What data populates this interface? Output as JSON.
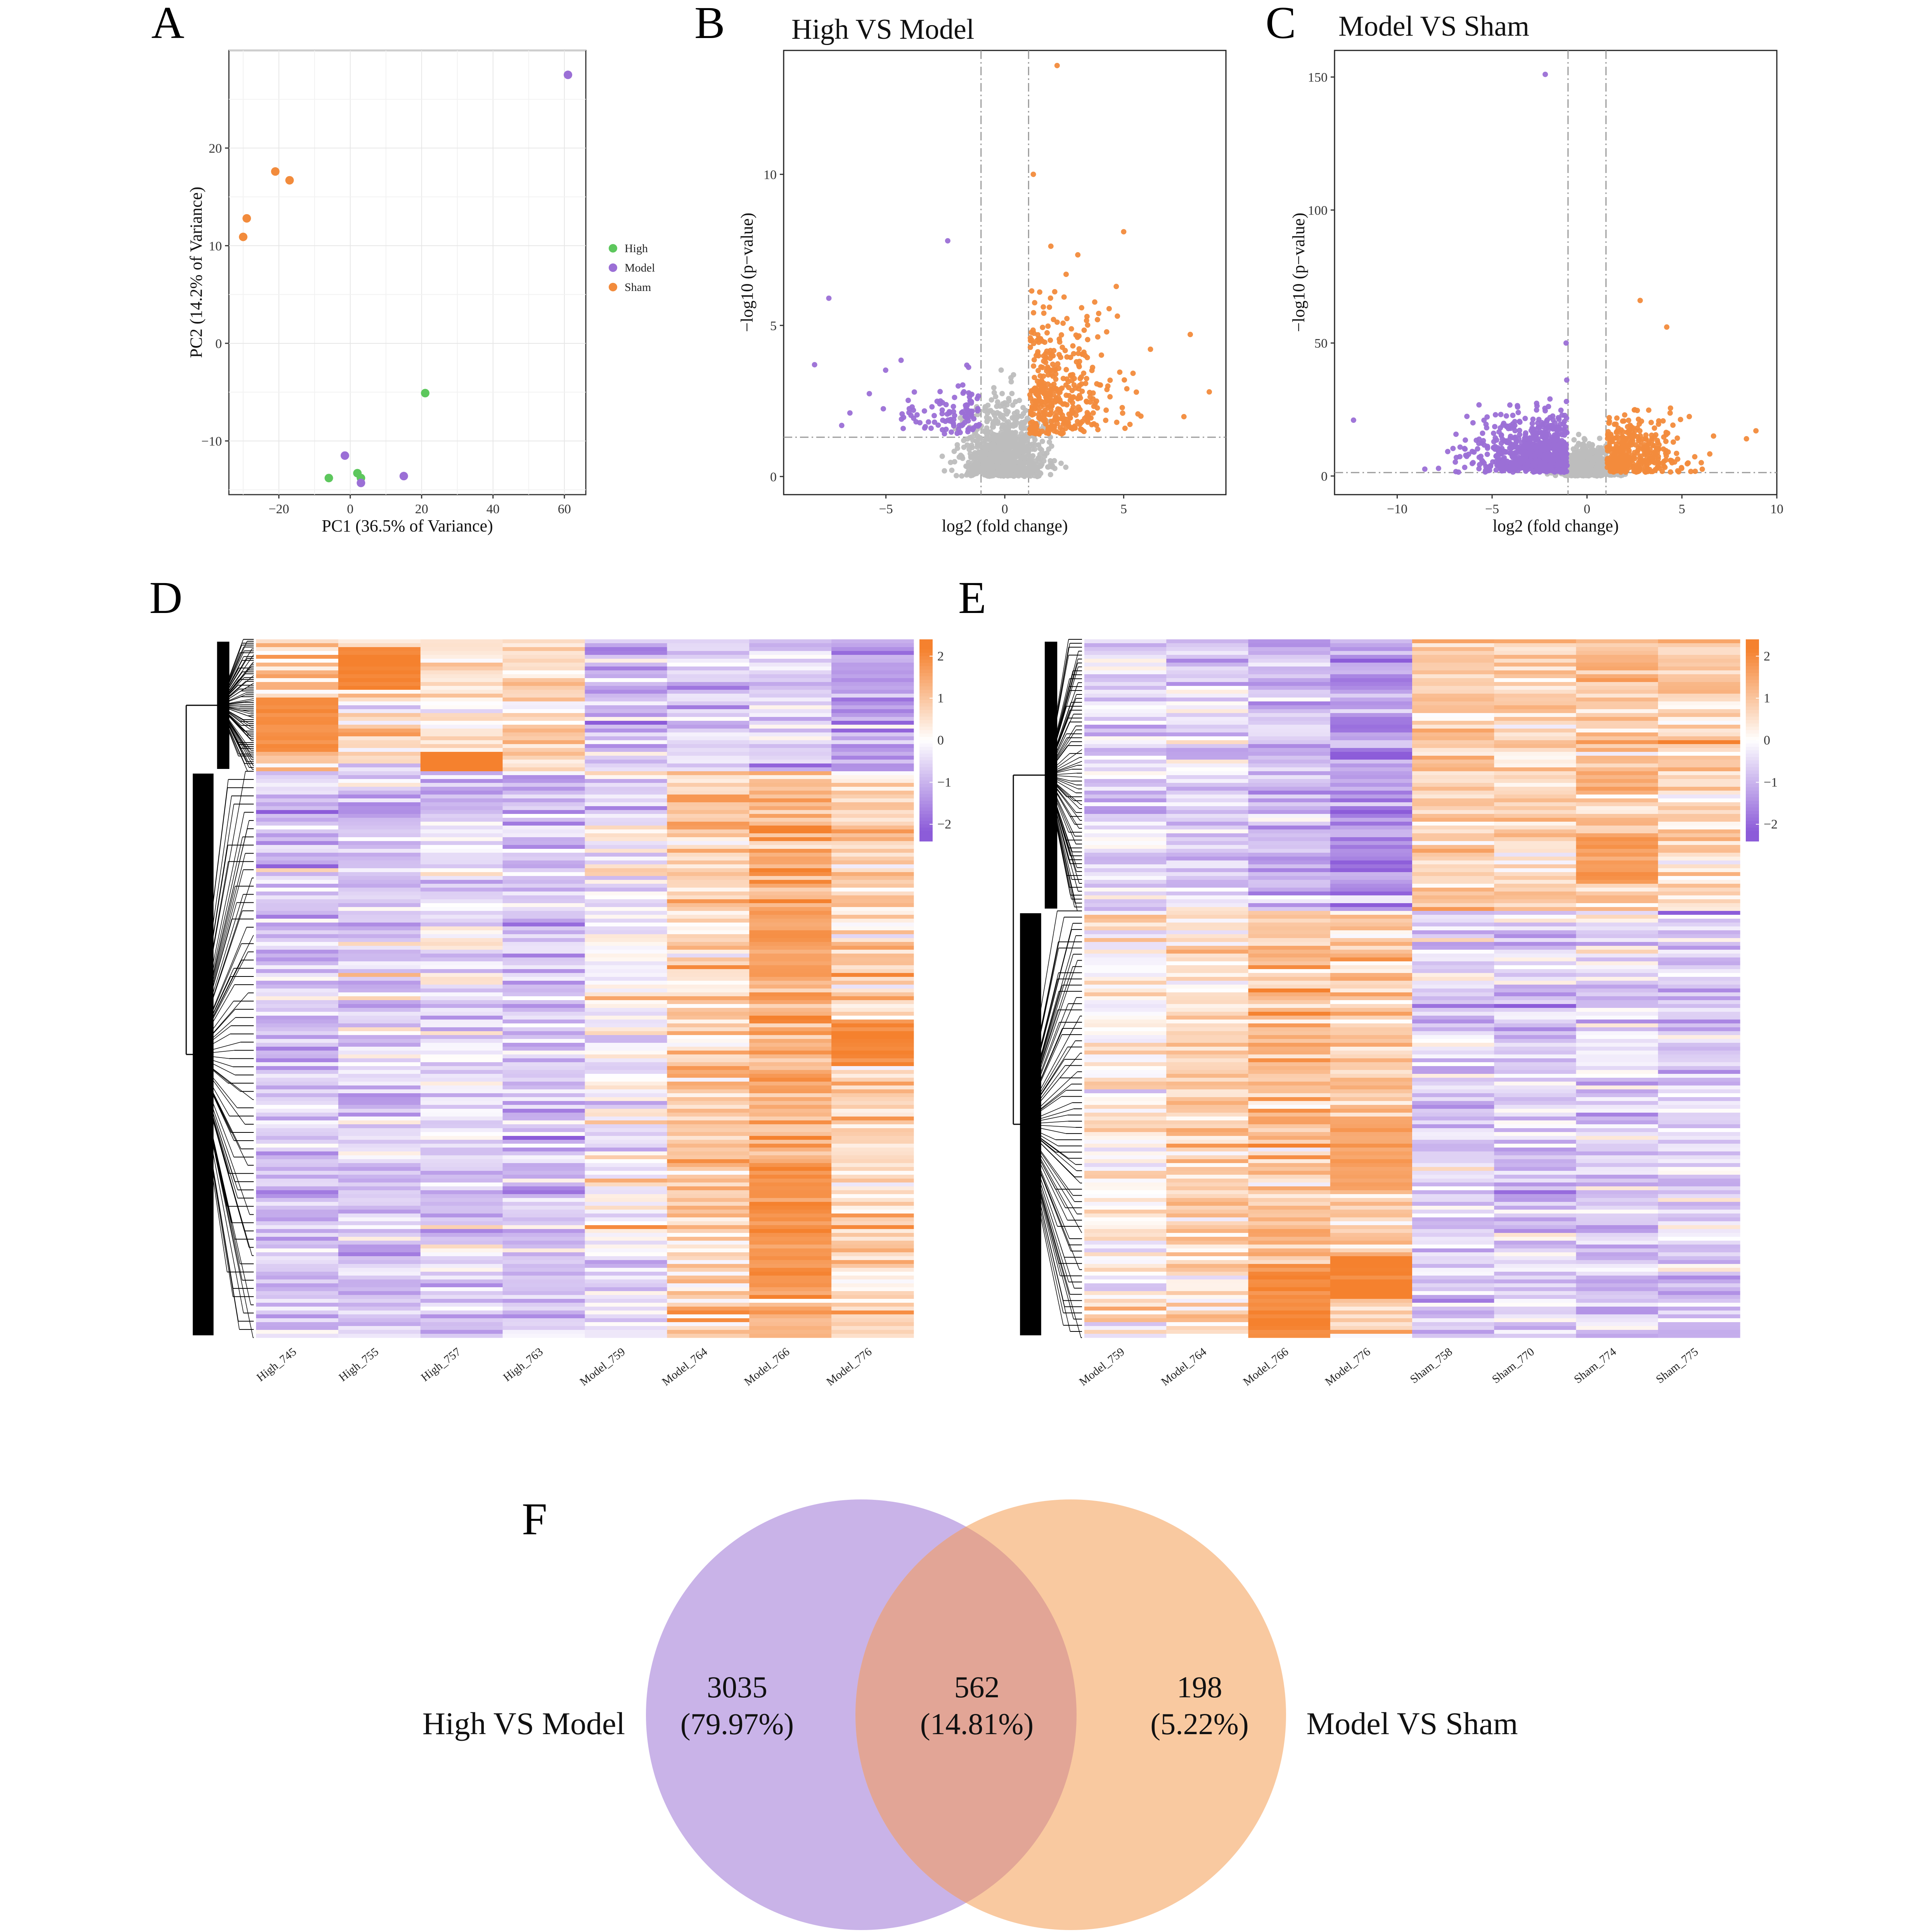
{
  "panels": {
    "a": "A",
    "b": "B",
    "c": "C",
    "d": "D",
    "e": "E",
    "f": "F"
  },
  "colors": {
    "High": "#5dc75d",
    "Model": "#9b6fd6",
    "Sham": "#f28b3c",
    "gray": "#bdbdbd",
    "venn_left": "#c9b3e8",
    "venn_right": "#f9c9a0",
    "venn_overlap": "#e2a596"
  },
  "chart_data": [
    {
      "id": "pca",
      "type": "scatter",
      "title": "",
      "xlabel": "PC1 (36.5% of Variance)",
      "ylabel": "PC2 (14.2% of Variance)",
      "xlim": [
        -34,
        66
      ],
      "ylim": [
        -15.5,
        30
      ],
      "xticks": [
        -20,
        0,
        20,
        40,
        60
      ],
      "xtick_labels": [
        "−20",
        "0",
        "20",
        "40",
        "60"
      ],
      "yticks": [
        -10,
        0,
        10,
        20
      ],
      "ytick_labels": [
        "−10",
        "0",
        "10",
        "20"
      ],
      "grid": true,
      "legend": {
        "position": "right",
        "entries": [
          "High",
          "Model",
          "Sham"
        ]
      },
      "series": [
        {
          "name": "High",
          "points": [
            [
              -6,
              -13.8
            ],
            [
              21,
              -5.1
            ],
            [
              2,
              -13.3
            ],
            [
              3,
              -13.8
            ]
          ]
        },
        {
          "name": "Model",
          "points": [
            [
              61,
              27.5
            ],
            [
              -1.5,
              -11.5
            ],
            [
              15,
              -13.6
            ],
            [
              3,
              -14.3
            ]
          ]
        },
        {
          "name": "Sham",
          "points": [
            [
              -21,
              17.6
            ],
            [
              -17,
              16.7
            ],
            [
              -29,
              12.8
            ],
            [
              -30,
              10.9
            ]
          ]
        }
      ]
    },
    {
      "id": "volcano_high_model",
      "type": "scatter",
      "title": "High VS Model",
      "xlabel": "log2 (fold change)",
      "ylabel": "−log10 (p−value)",
      "xlim": [
        -9.3,
        9.3
      ],
      "ylim": [
        -0.6,
        14.1
      ],
      "xticks": [
        -5,
        0,
        5
      ],
      "xtick_labels": [
        "−5",
        "0",
        "5"
      ],
      "yticks": [
        0,
        5,
        10
      ],
      "ytick_labels": [
        "0",
        "5",
        "10"
      ],
      "fc_threshold": 1,
      "p_threshold_line": 1.3,
      "groups": [
        "down",
        "ns",
        "up"
      ],
      "notable_points": [
        [
          -8,
          3.7
        ],
        [
          -7.4,
          5.9
        ],
        [
          -2.4,
          7.8
        ],
        [
          1.2,
          10
        ],
        [
          2.2,
          13.6
        ],
        [
          5,
          8.1
        ],
        [
          7.8,
          4.7
        ],
        [
          8.6,
          2.8
        ]
      ]
    },
    {
      "id": "volcano_model_sham",
      "type": "scatter",
      "title": "Model VS Sham",
      "xlabel": "log2 (fold change)",
      "ylabel": "−log10 (p−value)",
      "xlim": [
        -13.3,
        10
      ],
      "ylim": [
        -7,
        160
      ],
      "xticks": [
        -10,
        -5,
        0,
        5,
        10
      ],
      "xtick_labels": [
        "−10",
        "−5",
        "0",
        "5",
        "10"
      ],
      "yticks": [
        0,
        50,
        100,
        150
      ],
      "ytick_labels": [
        "0",
        "50",
        "100",
        "150"
      ],
      "fc_threshold": 1,
      "p_threshold_line": 1.3,
      "groups": [
        "down",
        "ns",
        "up"
      ],
      "notable_points": [
        [
          -2.2,
          151
        ],
        [
          -12.3,
          21
        ],
        [
          -1.1,
          50
        ],
        [
          2.8,
          66
        ],
        [
          4.2,
          56
        ],
        [
          8.4,
          14
        ],
        [
          8.9,
          17
        ]
      ]
    },
    {
      "id": "heatmap_d",
      "type": "heatmap",
      "columns": [
        "High_745",
        "High_755",
        "High_757",
        "High_763",
        "Model_759",
        "Model_764",
        "Model_766",
        "Model_776"
      ],
      "colorbar": {
        "ticks": [
          2,
          1,
          0,
          -1,
          -2
        ],
        "tick_labels": [
          "2",
          "1",
          "0",
          "−1",
          "−2"
        ],
        "low": "#8c5cd9",
        "mid": "#ffffff",
        "high": "#f5812e"
      },
      "clusters": [
        {
          "fraction": 0.19,
          "means": [
            0.9,
            0.6,
            0.5,
            0.7,
            -0.6,
            -0.6,
            -0.5,
            -1.2
          ],
          "blocks": [
            [
              0.08,
              0.16,
              0,
              2.0
            ],
            [
              0.01,
              0.07,
              1,
              2.2
            ],
            [
              0.16,
              0.19,
              2,
              2.2
            ]
          ]
        },
        {
          "fraction": 0.81,
          "means": [
            -0.8,
            -0.7,
            -0.5,
            -0.8,
            -0.2,
            0.8,
            1.4,
            0.7
          ],
          "blocks": [
            [
              0.55,
              0.61,
              7,
              2.2
            ],
            [
              0.75,
              0.92,
              6,
              1.9
            ],
            [
              0.38,
              0.48,
              6,
              1.6
            ],
            [
              0.22,
              0.23,
              5,
              1.8
            ]
          ]
        }
      ]
    },
    {
      "id": "heatmap_e",
      "type": "heatmap",
      "columns": [
        "Model_759",
        "Model_764",
        "Model_766",
        "Model_776",
        "Sham_758",
        "Sham_770",
        "Sham_774",
        "Sham_775"
      ],
      "colorbar": {
        "ticks": [
          2,
          1,
          0,
          -1,
          -2
        ],
        "tick_labels": [
          "2",
          "1",
          "0",
          "−1",
          "−2"
        ],
        "low": "#8c5cd9",
        "mid": "#ffffff",
        "high": "#f5812e"
      },
      "clusters": [
        {
          "fraction": 0.39,
          "means": [
            -0.6,
            -0.5,
            -0.9,
            -1.4,
            0.9,
            0.7,
            1.0,
            0.8
          ],
          "blocks": [
            [
              0.28,
              0.35,
              6,
              1.8
            ],
            [
              0.18,
              0.22,
              6,
              1.5
            ]
          ]
        },
        {
          "fraction": 0.61,
          "means": [
            0.2,
            0.7,
            1.0,
            0.9,
            -0.7,
            -0.8,
            -0.6,
            -0.7
          ],
          "blocks": [
            [
              0.88,
              0.94,
              3,
              2.2
            ],
            [
              0.9,
              1.0,
              2,
              2.0
            ],
            [
              0.68,
              0.79,
              3,
              1.6
            ]
          ]
        }
      ]
    }
  ],
  "venn": {
    "left_label": "High VS Model",
    "right_label": "Model VS Sham",
    "left_only": "3035",
    "left_only_pct": "(79.97%)",
    "overlap": "562",
    "overlap_pct": "(14.81%)",
    "right_only": "198",
    "right_only_pct": "(5.22%)"
  }
}
